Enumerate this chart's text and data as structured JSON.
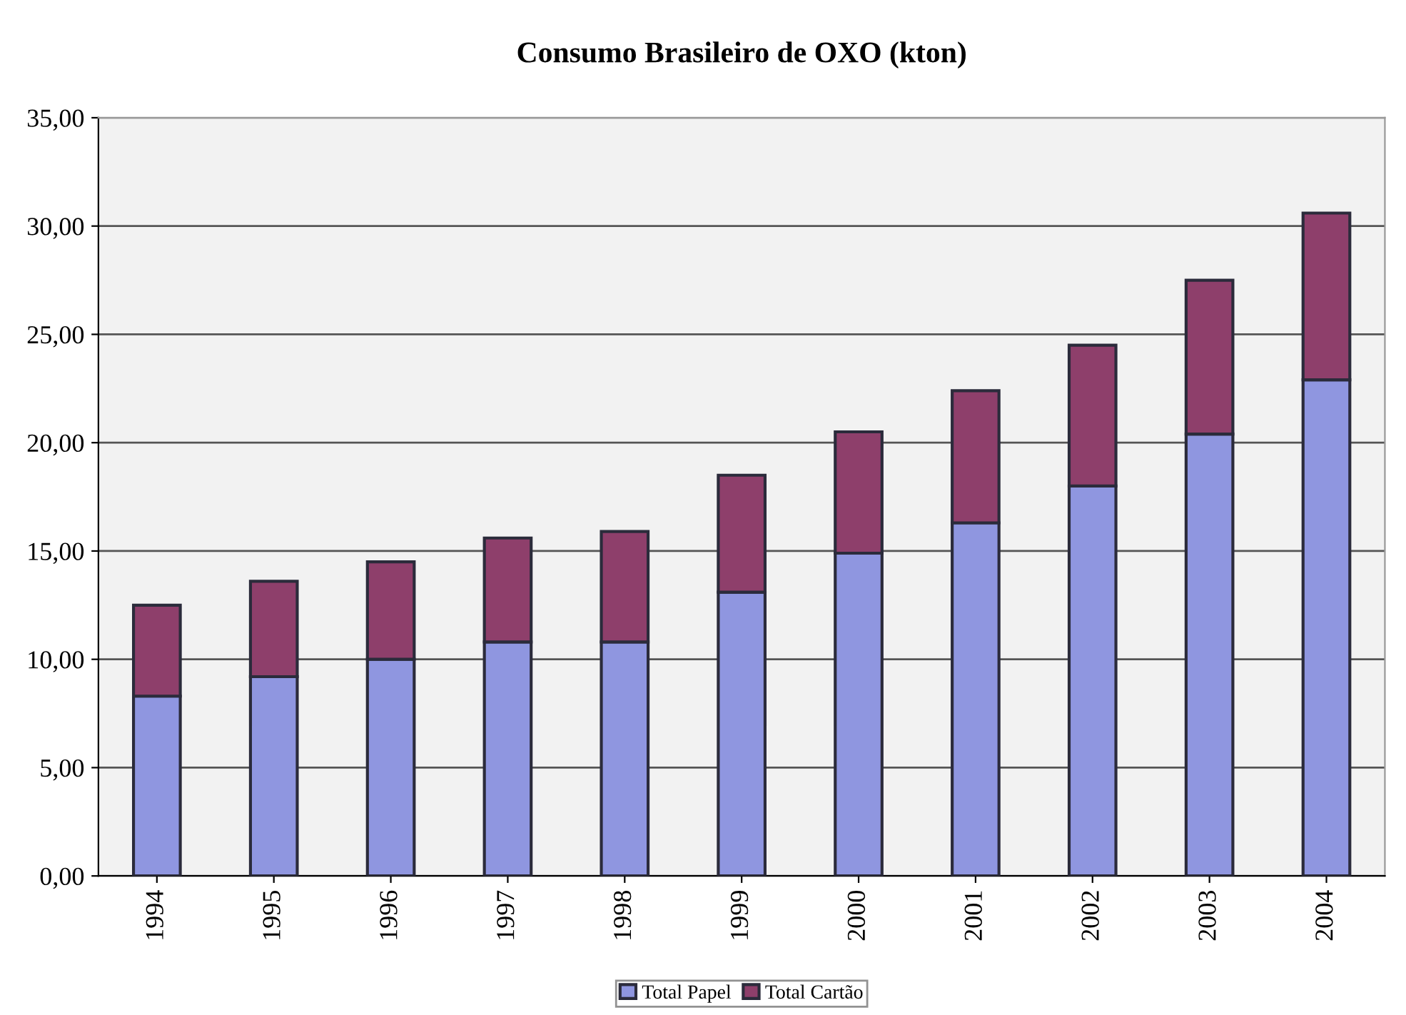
{
  "chart_data": {
    "type": "bar",
    "title": "Consumo Brasileiro de OXO (kton)",
    "categories": [
      "1994",
      "1995",
      "1996",
      "1997",
      "1998",
      "1999",
      "2000",
      "2001",
      "2002",
      "2003",
      "2004"
    ],
    "stacked": true,
    "series": [
      {
        "name": "Total Papel",
        "color": "#8f96e0",
        "values": [
          8.3,
          9.2,
          10.0,
          10.8,
          10.8,
          13.1,
          14.9,
          16.3,
          18.0,
          20.4,
          22.9
        ]
      },
      {
        "name": "Total Cartão",
        "color": "#8e3f6b",
        "values": [
          4.2,
          4.4,
          4.5,
          4.8,
          5.1,
          5.4,
          5.6,
          6.1,
          6.5,
          7.1,
          7.7
        ]
      }
    ],
    "ylim": [
      0,
      35
    ],
    "yticks": [
      {
        "value": 0,
        "label": "0,00"
      },
      {
        "value": 5,
        "label": "5,00"
      },
      {
        "value": 10,
        "label": "10,00"
      },
      {
        "value": 15,
        "label": "15,00"
      },
      {
        "value": 20,
        "label": "20,00"
      },
      {
        "value": 25,
        "label": "25,00"
      },
      {
        "value": 30,
        "label": "30,00"
      },
      {
        "value": 35,
        "label": "35,00"
      }
    ],
    "grid": "y",
    "legend": "bottom"
  }
}
